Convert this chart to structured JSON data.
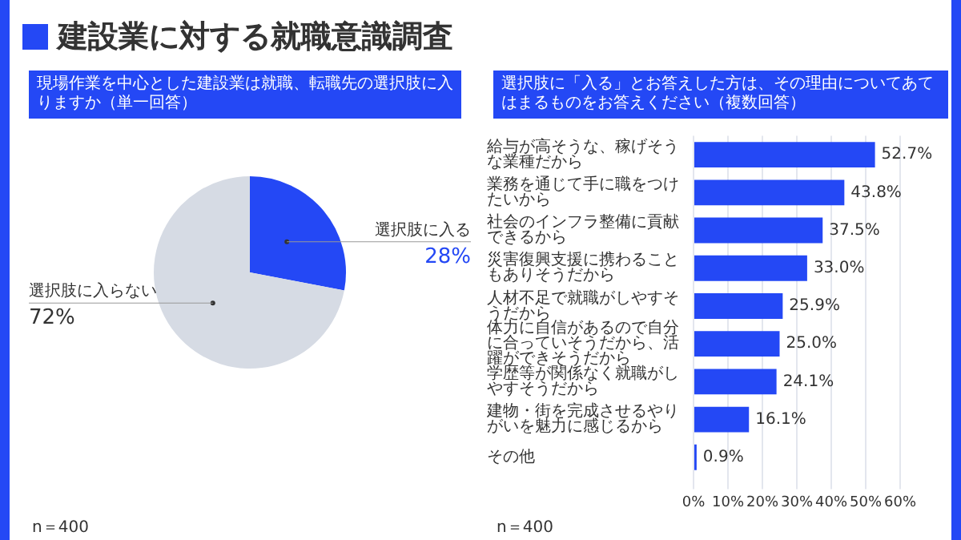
{
  "chart_data": [
    {
      "type": "pie",
      "title": "建設業に対する就職意識調査",
      "subtitle": "現場作業を中心とした建設業は就職、転職先の選択肢に入りますか（単一回答）",
      "categories": [
        "選択肢に入る",
        "選択肢に入らない"
      ],
      "values": [
        28,
        72
      ],
      "colors": [
        "#2448f5",
        "#d6dbe4"
      ],
      "value_labels": [
        "28%",
        "72%"
      ],
      "annotations": [
        "n＝400"
      ]
    },
    {
      "type": "bar",
      "orientation": "horizontal",
      "subtitle": "選択肢に「入る」とお答えした方は、その理由についてあてはまるものをお答えください（複数回答）",
      "categories": [
        "給与が高そうな、稼げそうな業種だから",
        "業務を通じて手に職をつけたいから",
        "社会のインフラ整備に貢献できるから",
        "災害復興支援に携わることもありそうだから",
        "人材不足で就職がしやすそうだから",
        "体力に自信があるので自分に合っていそうだから、活躍ができそうだから",
        "学歴等が関係なく就職がしやすそうだから",
        "建物・街を完成させるやりがいを魅力に感じるから",
        "その他"
      ],
      "values": [
        52.7,
        43.8,
        37.5,
        33.0,
        25.9,
        25.0,
        24.1,
        16.1,
        0.9
      ],
      "color": "#2448f5",
      "value_labels": [
        "52.7%",
        "43.8%",
        "37.5%",
        "33.0%",
        "25.9%",
        "25.0%",
        "24.1%",
        "16.1%",
        "0.9%"
      ],
      "xlim": [
        0,
        60
      ],
      "xticks": [
        {
          "value": 0,
          "label": "0%"
        },
        {
          "value": 10,
          "label": "10%"
        },
        {
          "value": 20,
          "label": "20%"
        },
        {
          "value": 30,
          "label": "30%"
        },
        {
          "value": 40,
          "label": "40%"
        },
        {
          "value": 50,
          "label": "50%"
        },
        {
          "value": 60,
          "label": "60%"
        }
      ],
      "grid": "x",
      "annotations": [
        "n＝400"
      ]
    }
  ]
}
